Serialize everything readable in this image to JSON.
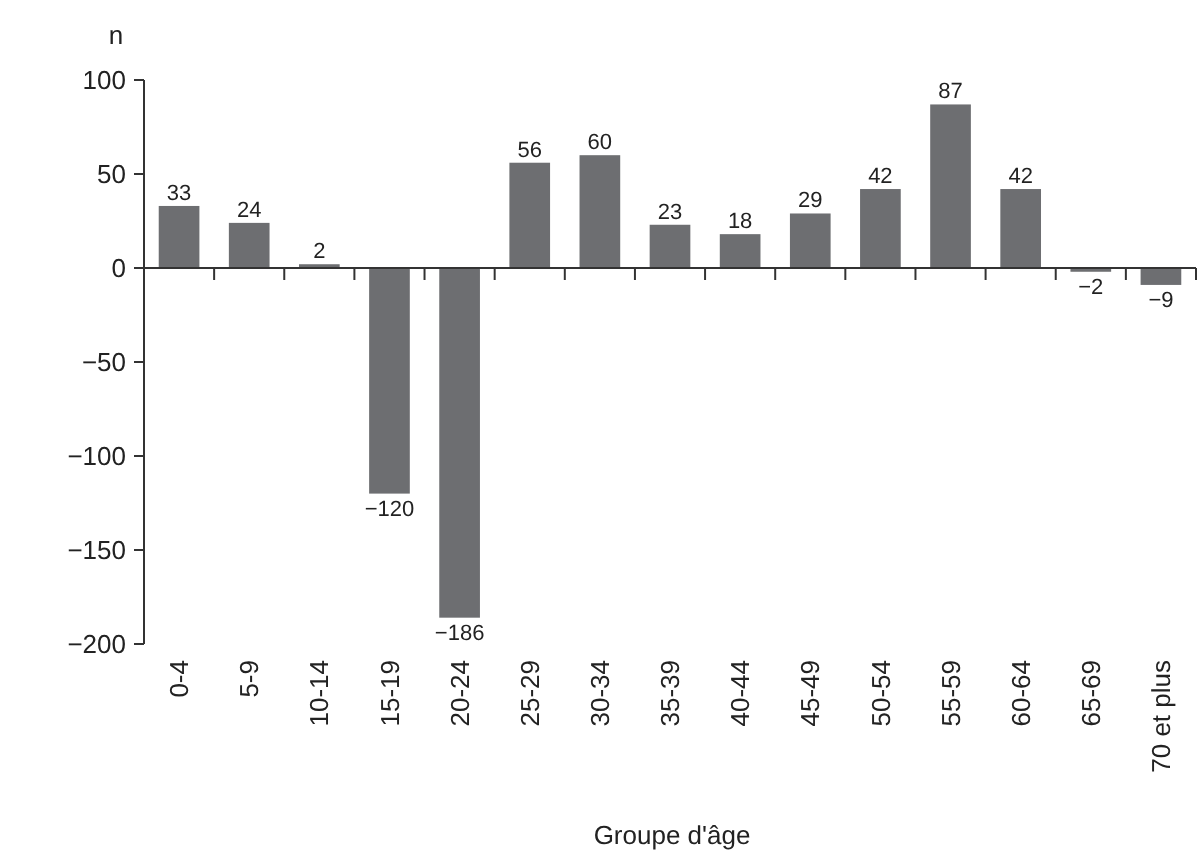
{
  "chart_data": {
    "type": "bar",
    "xlabel": "Groupe d'âge",
    "ylabel": "n",
    "categories": [
      "0-4",
      "5-9",
      "10-14",
      "15-19",
      "20-24",
      "25-29",
      "30-34",
      "35-39",
      "40-44",
      "45-49",
      "50-54",
      "55-59",
      "60-64",
      "65-69",
      "70 et plus"
    ],
    "values": [
      33,
      24,
      2,
      -120,
      -186,
      56,
      60,
      23,
      18,
      29,
      42,
      87,
      42,
      -2,
      -9
    ],
    "value_labels": [
      "33",
      "24",
      "2",
      "−120",
      "−186",
      "56",
      "60",
      "23",
      "18",
      "29",
      "42",
      "87",
      "42",
      "−2",
      "−9"
    ],
    "color": "#6d6e71",
    "ylim": [
      -200,
      100
    ],
    "yticks": [
      {
        "value": -200,
        "label": "−200"
      },
      {
        "value": -150,
        "label": "−150"
      },
      {
        "value": -100,
        "label": "−100"
      },
      {
        "value": -50,
        "label": "−50"
      },
      0,
      50,
      100
    ]
  }
}
